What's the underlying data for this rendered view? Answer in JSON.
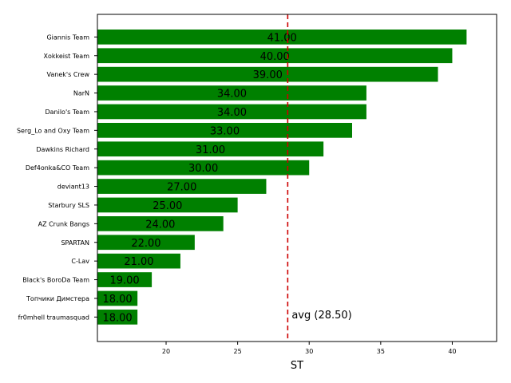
{
  "chart_data": {
    "type": "bar",
    "orientation": "horizontal",
    "categories": [
      "Giannis Team",
      "Xokkeist Team",
      "Vanek's Crew",
      "NarN",
      "Danilo's Team",
      "Serg_Lo and Oxy Team",
      "Dawkins Richard",
      "Def4onka&CO Team",
      "deviant13",
      "Starbury SLS",
      "AZ Crunk Bangs",
      "SPARTAN",
      "C-Lav",
      "Black's BoroDa Team",
      "Топчики Димстера",
      "fr0mhell traumasquad"
    ],
    "values": [
      41,
      40,
      39,
      34,
      34,
      33,
      31,
      30,
      27,
      25,
      24,
      22,
      21,
      19,
      18,
      18
    ],
    "data_labels": [
      "41.00",
      "40.00",
      "39.00",
      "34.00",
      "34.00",
      "33.00",
      "31.00",
      "30.00",
      "27.00",
      "25.00",
      "24.00",
      "22.00",
      "21.00",
      "19.00",
      "18.00",
      "18.00"
    ],
    "xlabel": "ST",
    "ylabel": "",
    "xlim": [
      15.2,
      43.1
    ],
    "xticks": [
      "20",
      "25",
      "30",
      "35",
      "40"
    ],
    "bar_color": "#008000",
    "average": 28.5,
    "average_label": "avg (28.50)",
    "average_color": "#cc0000",
    "grid": false,
    "legend": "none"
  }
}
